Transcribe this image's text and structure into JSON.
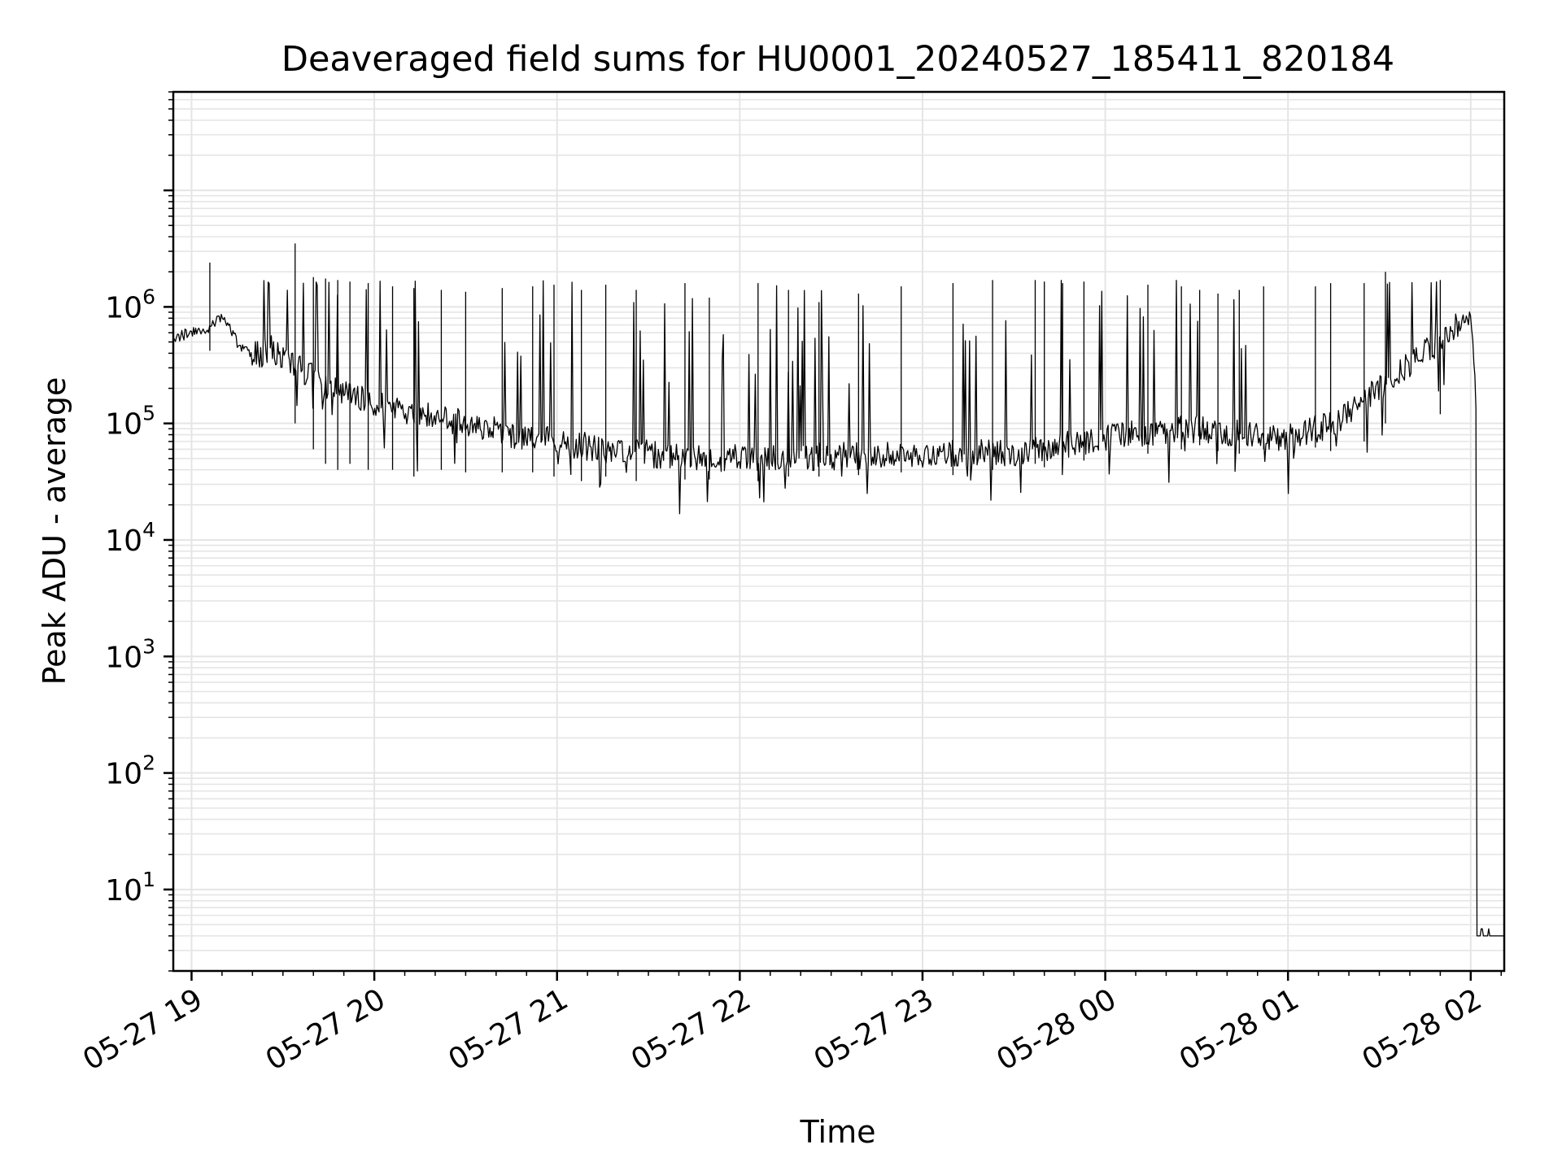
{
  "chart_data": {
    "type": "line",
    "title": "Deaveraged field sums for HU0001_20240527_185411_820184",
    "xlabel": "Time",
    "ylabel": "Peak ADU - average",
    "yscale": "log",
    "ylim": [
      2,
      70000000
    ],
    "xlim": [
      "05-27 18:54",
      "05-28 02:11"
    ],
    "grid": true,
    "line_color": "#000000",
    "grid_color": "#e5e5e5",
    "x_ticks": [
      {
        "label": "05-27 19",
        "time": "05-27 19:00"
      },
      {
        "label": "05-27 20",
        "time": "05-27 20:00"
      },
      {
        "label": "05-27 21",
        "time": "05-27 21:00"
      },
      {
        "label": "05-27 22",
        "time": "05-27 22:00"
      },
      {
        "label": "05-27 23",
        "time": "05-27 23:00"
      },
      {
        "label": "05-28 00",
        "time": "05-28 00:00"
      },
      {
        "label": "05-28 01",
        "time": "05-28 01:00"
      },
      {
        "label": "05-28 02",
        "time": "05-28 02:00"
      }
    ],
    "y_ticks": [
      {
        "base": "10",
        "exp": "1",
        "value": 10
      },
      {
        "base": "10",
        "exp": "2",
        "value": 100
      },
      {
        "base": "10",
        "exp": "3",
        "value": 1000
      },
      {
        "base": "10",
        "exp": "4",
        "value": 10000
      },
      {
        "base": "10",
        "exp": "5",
        "value": 100000
      },
      {
        "base": "10",
        "exp": "6",
        "value": 1000000
      }
    ],
    "series": [
      {
        "color": "#000000",
        "x": [
          "05-27 18:54",
          "05-27 19:00",
          "05-27 19:06",
          "05-27 19:10",
          "05-27 19:15",
          "05-27 19:20",
          "05-27 19:23",
          "05-27 19:26",
          "05-27 19:30",
          "05-27 19:35",
          "05-27 19:40",
          "05-27 19:45",
          "05-27 19:50",
          "05-27 20:00",
          "05-27 20:15",
          "05-27 20:30",
          "05-27 20:45",
          "05-27 21:00",
          "05-27 21:15",
          "05-27 21:30",
          "05-27 21:45",
          "05-27 22:00",
          "05-27 22:30",
          "05-27 23:00",
          "05-27 23:30",
          "05-28 00:00",
          "05-28 00:15",
          "05-28 00:30",
          "05-28 00:45",
          "05-28 01:00",
          "05-28 01:15",
          "05-28 01:30",
          "05-28 01:45",
          "05-28 01:55",
          "05-28 02:00",
          "05-28 02:02",
          "05-28 02:03",
          "05-28 02:11"
        ],
        "y": [
          550000,
          600000,
          650000,
          850000,
          500000,
          380000,
          400000,
          450000,
          350000,
          300000,
          250000,
          200000,
          180000,
          150000,
          120000,
          100000,
          80000,
          70000,
          60000,
          55000,
          50000,
          50000,
          52000,
          55000,
          56000,
          75000,
          85000,
          90000,
          80000,
          75000,
          100000,
          200000,
          400000,
          700000,
          800000,
          100000,
          4,
          4
        ]
      }
    ],
    "spikes": {
      "x": [
        "05-27 19:06",
        "05-27 19:34",
        "05-27 19:40",
        "05-27 19:44",
        "05-27 19:48",
        "05-27 19:52",
        "05-27 19:58",
        "05-27 20:06",
        "05-27 20:13",
        "05-27 20:22",
        "05-27 20:30",
        "05-27 20:42",
        "05-27 20:52",
        "05-27 20:59",
        "05-27 21:08",
        "05-27 21:16",
        "05-27 21:26",
        "05-27 21:42",
        "05-27 21:50",
        "05-27 22:06",
        "05-27 22:16",
        "05-27 22:26",
        "05-27 22:39",
        "05-27 22:53",
        "05-27 23:10",
        "05-27 23:23",
        "05-27 23:37",
        "05-27 23:40",
        "05-27 23:46",
        "05-27 23:53",
        "05-28 00:14",
        "05-28 00:25",
        "05-28 00:31",
        "05-28 00:37",
        "05-28 00:44",
        "05-28 00:52",
        "05-28 01:09",
        "05-28 01:14",
        "05-28 01:25",
        "05-28 01:32",
        "05-28 01:50"
      ],
      "peaks": [
        2400000,
        3500000,
        1800000,
        1750000,
        1700000,
        1650000,
        1600000,
        1500000,
        1450000,
        1400000,
        1350000,
        1450000,
        1500000,
        1550000,
        1400000,
        1550000,
        1400000,
        1600000,
        1200000,
        1600000,
        1400000,
        1100000,
        1300000,
        1500000,
        1600000,
        1700000,
        1700000,
        1650000,
        1600000,
        1650000,
        1550000,
        1500000,
        1400000,
        1300000,
        1400000,
        1500000,
        1500000,
        1600000,
        1600000,
        2000000,
        1700000
      ],
      "lows": [
        420000,
        100000,
        60000,
        45000,
        40000,
        45000,
        40000,
        40000,
        35000,
        40000,
        38000,
        38000,
        38000,
        35000,
        32000,
        35000,
        32000,
        33000,
        33000,
        32000,
        35000,
        35000,
        36000,
        38000,
        36000,
        40000,
        45000,
        42000,
        45000,
        48000,
        55000,
        60000,
        65000,
        58000,
        55000,
        60000,
        62000,
        58000,
        70000,
        100000,
        120000
      ]
    }
  }
}
